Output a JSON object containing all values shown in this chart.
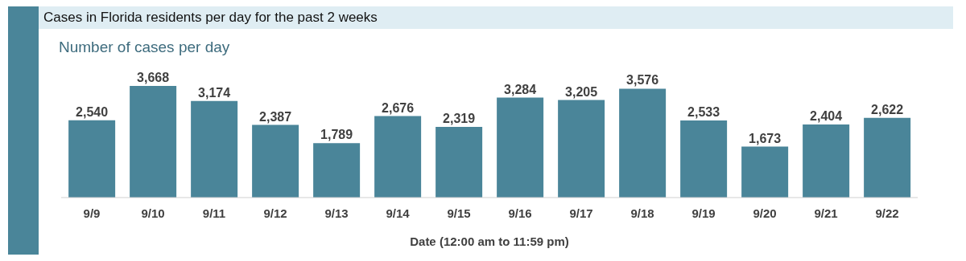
{
  "chart_data": {
    "type": "bar",
    "title": "Cases in Florida residents per day for the past 2 weeks",
    "subtitle": "Number of cases per day",
    "xlabel": "Date (12:00 am to 11:59 pm)",
    "categories": [
      "9/9",
      "9/10",
      "9/11",
      "9/12",
      "9/13",
      "9/14",
      "9/15",
      "9/16",
      "9/17",
      "9/18",
      "9/19",
      "9/20",
      "9/21",
      "9/22"
    ],
    "values": [
      2540,
      3668,
      3174,
      2387,
      1789,
      2676,
      2319,
      3284,
      3205,
      3576,
      2533,
      1673,
      2404,
      2622
    ],
    "value_labels": [
      "2,540",
      "3,668",
      "3,174",
      "2,387",
      "1,789",
      "2,676",
      "2,319",
      "3,284",
      "3,205",
      "3,576",
      "2,533",
      "1,673",
      "2,404",
      "2,622"
    ],
    "color": "#4a8599",
    "grid": false,
    "legend": false
  }
}
